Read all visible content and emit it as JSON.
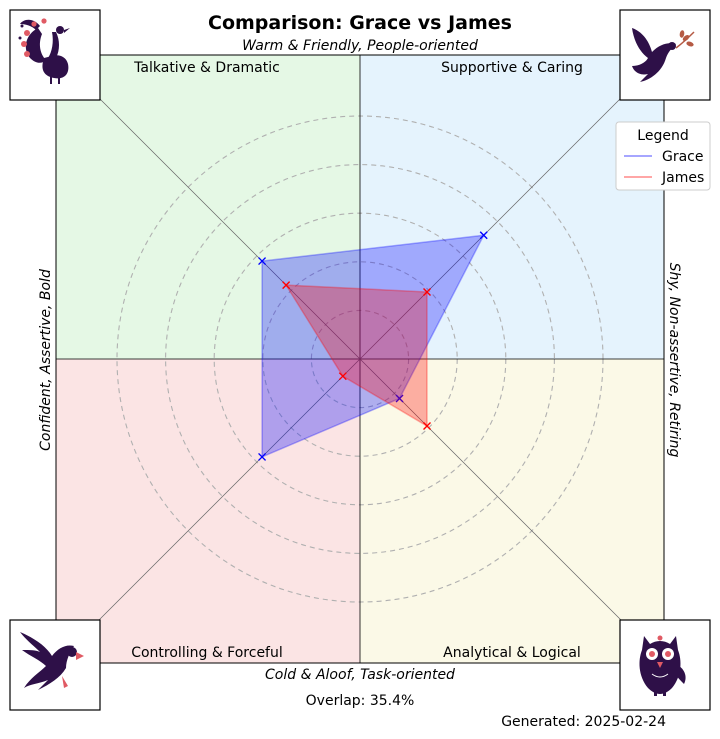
{
  "chart_data": {
    "type": "radar",
    "title": "Comparison: Grace vs James",
    "axis_labels": {
      "top": "Warm & Friendly, People-oriented",
      "bottom": "Cold & Aloof, Task-oriented",
      "left": "Confident, Assertive, Bold",
      "right": "Shy, Non-assertive, Retiring"
    },
    "quadrants": [
      {
        "name": "Talkative & Dramatic",
        "position": "top-left",
        "color": "#e5f8e5",
        "icon": "peacock-icon"
      },
      {
        "name": "Supportive & Caring",
        "position": "top-right",
        "color": "#e5f3fd",
        "icon": "dove-icon"
      },
      {
        "name": "Controlling & Forceful",
        "position": "bottom-left",
        "color": "#fbe4e4",
        "icon": "eagle-icon"
      },
      {
        "name": "Analytical & Logical",
        "position": "bottom-right",
        "color": "#fbf9e7",
        "icon": "owl-icon"
      }
    ],
    "directions": [
      "Supportive & Caring",
      "Talkative & Dramatic",
      "Controlling & Forceful",
      "Analytical & Logical"
    ],
    "rlim": [
      0,
      100
    ],
    "grid": true,
    "series": [
      {
        "name": "Grace",
        "color": "#0000ff",
        "values": [
          72,
          57,
          57,
          23
        ]
      },
      {
        "name": "James",
        "color": "#ff0000",
        "values": [
          39,
          43,
          10,
          39
        ]
      }
    ],
    "legend": {
      "title": "Legend",
      "placement": "top-right"
    },
    "footer": {
      "overlap": "Overlap: 35.4%",
      "generated": "Generated: 2025-02-24"
    }
  }
}
